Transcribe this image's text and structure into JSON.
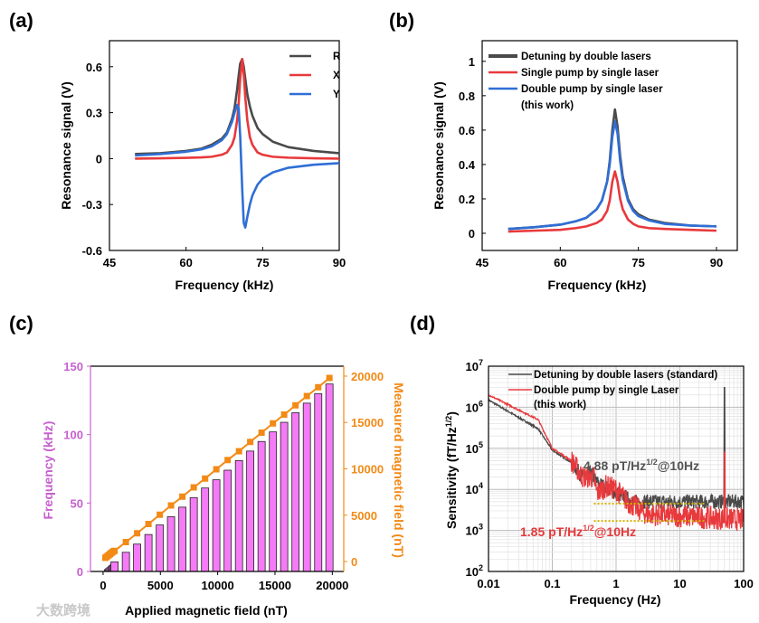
{
  "panels": [
    "(a)",
    "(b)",
    "(c)",
    "(d)"
  ],
  "watermark": "大数跨境",
  "chart_data": [
    {
      "type": "line",
      "panel": "(a)",
      "xlabel": "Frequency (kHz)",
      "ylabel": "Resonance signal (V)",
      "xlim": [
        45,
        90
      ],
      "ylim": [
        -0.6,
        0.77
      ],
      "xticks": [
        45,
        60,
        75,
        90
      ],
      "yticks": [
        -0.6,
        -0.3,
        0,
        0.3,
        0.6
      ],
      "ytick_labels": [
        "-0.6",
        "-0.3",
        "0",
        "0.3",
        "0.6"
      ],
      "legend_position": "top-right",
      "x": [
        50,
        55,
        60,
        63,
        65,
        67,
        68,
        69,
        69.5,
        70,
        70.3,
        70.6,
        71,
        71.3,
        71.6,
        72,
        72.5,
        73,
        74,
        75,
        77,
        80,
        85,
        90
      ],
      "series": [
        {
          "name": "R",
          "color": "#4a4a4a",
          "values": [
            0.03,
            0.035,
            0.05,
            0.065,
            0.09,
            0.13,
            0.17,
            0.26,
            0.33,
            0.45,
            0.54,
            0.62,
            0.65,
            0.6,
            0.52,
            0.42,
            0.34,
            0.28,
            0.2,
            0.16,
            0.11,
            0.075,
            0.05,
            0.035
          ]
        },
        {
          "name": "X",
          "color": "#e8393c",
          "values": [
            0,
            0.002,
            0.005,
            0.008,
            0.012,
            0.025,
            0.04,
            0.09,
            0.14,
            0.25,
            0.36,
            0.52,
            0.65,
            0.55,
            0.4,
            0.25,
            0.14,
            0.09,
            0.04,
            0.025,
            0.012,
            0.006,
            0.002,
            0
          ]
        },
        {
          "name": "Y",
          "color": "#2f6fd6",
          "values": [
            0.02,
            0.03,
            0.045,
            0.06,
            0.08,
            0.12,
            0.16,
            0.24,
            0.3,
            0.35,
            0.33,
            0.15,
            -0.2,
            -0.42,
            -0.45,
            -0.38,
            -0.3,
            -0.24,
            -0.17,
            -0.13,
            -0.09,
            -0.06,
            -0.04,
            -0.03
          ]
        }
      ]
    },
    {
      "type": "line",
      "panel": "(b)",
      "xlabel": "Frequency (kHz)",
      "ylabel": "Resonance signal (V)",
      "xlim": [
        45,
        94
      ],
      "ylim": [
        -0.1,
        1.12
      ],
      "xticks": [
        45,
        60,
        75,
        90
      ],
      "yticks": [
        0,
        0.2,
        0.4,
        0.6,
        0.8,
        1
      ],
      "ytick_labels": [
        "0",
        "0.2",
        "0.4",
        "0.6",
        "0.8",
        "1"
      ],
      "legend_position": "top-left",
      "x": [
        50,
        55,
        60,
        63,
        65,
        67,
        68,
        69,
        69.5,
        70,
        70.5,
        71,
        71.5,
        72,
        73,
        74,
        75,
        77,
        80,
        85,
        90
      ],
      "series": [
        {
          "name": "Detuning by double lasers",
          "color": "#4a4a4a",
          "values": [
            0.025,
            0.035,
            0.05,
            0.07,
            0.09,
            0.14,
            0.19,
            0.3,
            0.42,
            0.6,
            0.72,
            0.62,
            0.45,
            0.33,
            0.2,
            0.14,
            0.11,
            0.08,
            0.06,
            0.045,
            0.04
          ]
        },
        {
          "name": "Single pump by single laser",
          "color": "#e8393c",
          "values": [
            0.01,
            0.015,
            0.02,
            0.03,
            0.04,
            0.06,
            0.08,
            0.13,
            0.19,
            0.3,
            0.36,
            0.3,
            0.2,
            0.14,
            0.08,
            0.055,
            0.04,
            0.03,
            0.025,
            0.02,
            0.015
          ]
        },
        {
          "name": "Double pump by single laser",
          "name2": "(this work)",
          "color": "#2f6fd6",
          "values": [
            0.025,
            0.035,
            0.05,
            0.07,
            0.09,
            0.14,
            0.19,
            0.3,
            0.4,
            0.56,
            0.65,
            0.58,
            0.42,
            0.31,
            0.19,
            0.13,
            0.1,
            0.075,
            0.055,
            0.045,
            0.04
          ]
        }
      ]
    },
    {
      "type": "bar+line",
      "panel": "(c)",
      "xlabel": "Applied magnetic field (nT)",
      "ylabel": "Frequency (kHz)",
      "y2label": "Measured magnetic field (nT)",
      "xlim": [
        -1100,
        21000
      ],
      "ylim": [
        0,
        150
      ],
      "y2lim": [
        -1070,
        21070
      ],
      "xticks": [
        0,
        5000,
        10000,
        15000,
        20000
      ],
      "yticks": [
        0,
        50,
        100,
        150
      ],
      "y2ticks": [
        0,
        5000,
        10000,
        15000,
        20000
      ],
      "bar_color": "#f57af5",
      "y_color": "#c760d0",
      "y2_color": "#f28a16",
      "x": [
        200,
        300,
        400,
        500,
        600,
        700,
        800,
        900,
        1000,
        1990,
        2970,
        3960,
        4950,
        5930,
        6920,
        7910,
        8900,
        9880,
        10870,
        11860,
        12840,
        13830,
        14820,
        15800,
        16790,
        17780,
        18770,
        19750
      ],
      "frequency": [
        1.4,
        2.1,
        2.8,
        3.5,
        4.2,
        4.9,
        5.6,
        6.3,
        7,
        14,
        20,
        27,
        34,
        40,
        47,
        54,
        61,
        67,
        74,
        81,
        88,
        95,
        102,
        109,
        116,
        123,
        130,
        137
      ],
      "measured": [
        400,
        500,
        600,
        700,
        800,
        900,
        1000,
        1100,
        1150,
        2100,
        3050,
        4050,
        5050,
        6050,
        7000,
        8000,
        8950,
        9950,
        10950,
        11900,
        12900,
        13900,
        14900,
        15850,
        16850,
        17850,
        18800,
        19800
      ]
    },
    {
      "type": "line",
      "panel": "(d)",
      "xlabel": "Frequency (Hz)",
      "ylabel": "Sensitivity (fT/Hz",
      "ylabel_sup": "1/2",
      "ylabel_end": ")",
      "xscale": "log",
      "yscale": "log",
      "xlim": [
        0.01,
        100
      ],
      "ylim": [
        100,
        10000000
      ],
      "xticks": [
        "0.01",
        "0.1",
        "1",
        "10",
        "100"
      ],
      "yticks": [
        2,
        3,
        4,
        5,
        6,
        7
      ],
      "legend_position": "top-right",
      "series": [
        {
          "name": "Detuning by double lasers  (standard)",
          "color": "#4a4a4a",
          "envelope": [
            [
              0.01,
              1500000
            ],
            [
              0.06,
              300000
            ],
            [
              0.1,
              90000
            ],
            [
              0.2,
              45000
            ],
            [
              0.3,
              20000
            ],
            [
              0.4,
              25000
            ],
            [
              0.5,
              15000
            ],
            [
              1,
              8000
            ],
            [
              2,
              5000
            ],
            [
              100,
              5000
            ]
          ],
          "noise": 0.18,
          "spike": [
            50,
            3000000
          ]
        },
        {
          "name": "Double pump by single  Laser",
          "name2": "(this work)",
          "color": "#e8393c",
          "envelope": [
            [
              0.01,
              2000000
            ],
            [
              0.06,
              500000
            ],
            [
              0.1,
              100000
            ],
            [
              0.2,
              50000
            ],
            [
              0.3,
              20000
            ],
            [
              0.45,
              20000
            ],
            [
              0.5,
              8000
            ],
            [
              0.7,
              12000
            ],
            [
              1,
              10000
            ],
            [
              1.5,
              5000
            ],
            [
              3,
              2500
            ],
            [
              100,
              1800
            ]
          ],
          "noise": 0.28,
          "spike": [
            50,
            80000
          ]
        }
      ],
      "reference_lines": [
        {
          "value": 4500,
          "from": 0.45,
          "to": 25
        },
        {
          "value": 1700,
          "from": 0.45,
          "to": 25
        }
      ],
      "annotations": [
        {
          "pre": "4.88 pT/Hz",
          "sup": "1/2",
          "post": "@10Hz",
          "color": "#555555"
        },
        {
          "pre": "1.85 pT/Hz",
          "sup": "1/2",
          "post": "@10Hz",
          "color": "#e8393c"
        }
      ]
    }
  ]
}
